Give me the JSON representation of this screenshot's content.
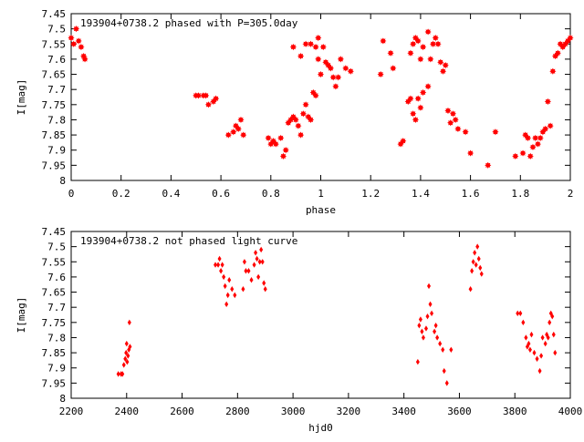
{
  "colors": {
    "points": "#ff0000",
    "axes": "#000000",
    "background": "#ffffff"
  },
  "chart_data": [
    {
      "type": "scatter",
      "title": "193904+0738.2 phased with P=305.0day",
      "xlabel": "phase",
      "ylabel": "I[mag]",
      "xlim": [
        0,
        2
      ],
      "ylim": [
        8,
        7.45
      ],
      "y_inverted": true,
      "grid": false,
      "marker": "filled-star",
      "xticks": [
        0,
        0.2,
        0.4,
        0.6,
        0.8,
        1,
        1.2,
        1.4,
        1.6,
        1.8,
        2
      ],
      "xtick_labels": [
        "0",
        "0.2",
        "0.4",
        "0.6",
        "0.8",
        "1",
        "1.2",
        "1.4",
        "1.6",
        "1.8",
        "2"
      ],
      "yticks": [
        7.45,
        7.5,
        7.55,
        7.6,
        7.65,
        7.7,
        7.75,
        7.8,
        7.85,
        7.9,
        7.95,
        8
      ],
      "ytick_labels": [
        "7.45",
        "7.5",
        "7.55",
        "7.6",
        "7.65",
        "7.7",
        "7.75",
        "7.8",
        "7.85",
        "7.9",
        "7.95",
        "8"
      ],
      "points": [
        [
          0.0,
          7.53
        ],
        [
          0.01,
          7.55
        ],
        [
          0.02,
          7.5
        ],
        [
          0.03,
          7.54
        ],
        [
          0.04,
          7.56
        ],
        [
          0.05,
          7.59
        ],
        [
          0.055,
          7.6
        ],
        [
          0.5,
          7.72
        ],
        [
          0.51,
          7.72
        ],
        [
          0.53,
          7.72
        ],
        [
          0.54,
          7.72
        ],
        [
          0.55,
          7.75
        ],
        [
          0.57,
          7.74
        ],
        [
          0.58,
          7.73
        ],
        [
          0.63,
          7.85
        ],
        [
          0.65,
          7.84
        ],
        [
          0.66,
          7.82
        ],
        [
          0.67,
          7.83
        ],
        [
          0.68,
          7.8
        ],
        [
          0.69,
          7.85
        ],
        [
          0.79,
          7.86
        ],
        [
          0.8,
          7.88
        ],
        [
          0.81,
          7.87
        ],
        [
          0.82,
          7.88
        ],
        [
          0.84,
          7.86
        ],
        [
          0.85,
          7.92
        ],
        [
          0.86,
          7.9
        ],
        [
          0.87,
          7.81
        ],
        [
          0.88,
          7.8
        ],
        [
          0.89,
          7.79
        ],
        [
          0.9,
          7.8
        ],
        [
          0.91,
          7.82
        ],
        [
          0.92,
          7.85
        ],
        [
          0.93,
          7.78
        ],
        [
          0.94,
          7.75
        ],
        [
          0.95,
          7.79
        ],
        [
          0.96,
          7.8
        ],
        [
          0.97,
          7.71
        ],
        [
          0.98,
          7.72
        ],
        [
          0.99,
          7.6
        ],
        [
          1.0,
          7.65
        ],
        [
          0.89,
          7.56
        ],
        [
          0.92,
          7.59
        ],
        [
          0.94,
          7.55
        ],
        [
          0.96,
          7.55
        ],
        [
          0.98,
          7.56
        ],
        [
          0.99,
          7.53
        ],
        [
          1.01,
          7.56
        ],
        [
          1.02,
          7.61
        ],
        [
          1.03,
          7.62
        ],
        [
          1.04,
          7.63
        ],
        [
          1.05,
          7.66
        ],
        [
          1.06,
          7.69
        ],
        [
          1.07,
          7.66
        ],
        [
          1.08,
          7.6
        ],
        [
          1.1,
          7.63
        ],
        [
          1.12,
          7.64
        ],
        [
          1.24,
          7.65
        ],
        [
          1.25,
          7.54
        ],
        [
          1.28,
          7.58
        ],
        [
          1.29,
          7.63
        ],
        [
          1.32,
          7.88
        ],
        [
          1.33,
          7.87
        ],
        [
          1.35,
          7.74
        ],
        [
          1.36,
          7.73
        ],
        [
          1.37,
          7.78
        ],
        [
          1.38,
          7.8
        ],
        [
          1.39,
          7.73
        ],
        [
          1.4,
          7.76
        ],
        [
          1.41,
          7.71
        ],
        [
          1.43,
          7.69
        ],
        [
          1.36,
          7.58
        ],
        [
          1.37,
          7.55
        ],
        [
          1.38,
          7.53
        ],
        [
          1.39,
          7.54
        ],
        [
          1.4,
          7.6
        ],
        [
          1.41,
          7.56
        ],
        [
          1.43,
          7.51
        ],
        [
          1.44,
          7.6
        ],
        [
          1.45,
          7.55
        ],
        [
          1.46,
          7.53
        ],
        [
          1.47,
          7.55
        ],
        [
          1.48,
          7.61
        ],
        [
          1.49,
          7.64
        ],
        [
          1.5,
          7.62
        ],
        [
          1.51,
          7.77
        ],
        [
          1.52,
          7.81
        ],
        [
          1.53,
          7.78
        ],
        [
          1.54,
          7.8
        ],
        [
          1.55,
          7.83
        ],
        [
          1.58,
          7.84
        ],
        [
          1.6,
          7.91
        ],
        [
          1.67,
          7.95
        ],
        [
          1.7,
          7.84
        ],
        [
          1.78,
          7.92
        ],
        [
          1.81,
          7.91
        ],
        [
          1.82,
          7.85
        ],
        [
          1.83,
          7.86
        ],
        [
          1.84,
          7.92
        ],
        [
          1.85,
          7.89
        ],
        [
          1.86,
          7.86
        ],
        [
          1.87,
          7.88
        ],
        [
          1.88,
          7.86
        ],
        [
          1.89,
          7.84
        ],
        [
          1.9,
          7.83
        ],
        [
          1.91,
          7.74
        ],
        [
          1.92,
          7.82
        ],
        [
          1.93,
          7.64
        ],
        [
          1.94,
          7.59
        ],
        [
          1.95,
          7.58
        ],
        [
          1.96,
          7.55
        ],
        [
          1.97,
          7.56
        ],
        [
          1.98,
          7.55
        ],
        [
          1.99,
          7.54
        ],
        [
          2.0,
          7.53
        ]
      ]
    },
    {
      "type": "scatter",
      "title": "193904+0738.2 not phased light curve",
      "xlabel": "hjd0",
      "ylabel": "I[mag]",
      "xlim": [
        2200,
        4000
      ],
      "ylim": [
        8,
        7.45
      ],
      "y_inverted": true,
      "grid": false,
      "marker": "diamond",
      "xticks": [
        2200,
        2400,
        2600,
        2800,
        3000,
        3200,
        3400,
        3600,
        3800,
        4000
      ],
      "xtick_labels": [
        "2200",
        "2400",
        "2600",
        "2800",
        "3000",
        "3200",
        "3400",
        "3600",
        "3800",
        "4000"
      ],
      "yticks": [
        7.45,
        7.5,
        7.55,
        7.6,
        7.65,
        7.7,
        7.75,
        7.8,
        7.85,
        7.9,
        7.95,
        8
      ],
      "ytick_labels": [
        "7.45",
        "7.5",
        "7.55",
        "7.6",
        "7.65",
        "7.7",
        "7.75",
        "7.8",
        "7.85",
        "7.9",
        "7.95",
        "8"
      ],
      "points": [
        [
          2370,
          7.92
        ],
        [
          2380,
          7.92
        ],
        [
          2385,
          7.92
        ],
        [
          2390,
          7.89
        ],
        [
          2395,
          7.87
        ],
        [
          2398,
          7.85
        ],
        [
          2400,
          7.82
        ],
        [
          2402,
          7.88
        ],
        [
          2405,
          7.86
        ],
        [
          2408,
          7.84
        ],
        [
          2410,
          7.75
        ],
        [
          2412,
          7.83
        ],
        [
          2720,
          7.56
        ],
        [
          2730,
          7.56
        ],
        [
          2735,
          7.54
        ],
        [
          2740,
          7.58
        ],
        [
          2745,
          7.56
        ],
        [
          2750,
          7.6
        ],
        [
          2755,
          7.63
        ],
        [
          2760,
          7.69
        ],
        [
          2765,
          7.66
        ],
        [
          2770,
          7.61
        ],
        [
          2780,
          7.64
        ],
        [
          2790,
          7.66
        ],
        [
          2820,
          7.64
        ],
        [
          2825,
          7.55
        ],
        [
          2830,
          7.58
        ],
        [
          2840,
          7.58
        ],
        [
          2850,
          7.61
        ],
        [
          2860,
          7.56
        ],
        [
          2865,
          7.52
        ],
        [
          2870,
          7.54
        ],
        [
          2875,
          7.6
        ],
        [
          2880,
          7.55
        ],
        [
          2885,
          7.51
        ],
        [
          2890,
          7.55
        ],
        [
          2895,
          7.62
        ],
        [
          2900,
          7.64
        ],
        [
          3450,
          7.88
        ],
        [
          3455,
          7.76
        ],
        [
          3460,
          7.74
        ],
        [
          3465,
          7.78
        ],
        [
          3470,
          7.8
        ],
        [
          3480,
          7.77
        ],
        [
          3485,
          7.73
        ],
        [
          3490,
          7.63
        ],
        [
          3495,
          7.69
        ],
        [
          3500,
          7.72
        ],
        [
          3510,
          7.78
        ],
        [
          3515,
          7.76
        ],
        [
          3520,
          7.8
        ],
        [
          3530,
          7.82
        ],
        [
          3540,
          7.84
        ],
        [
          3545,
          7.91
        ],
        [
          3555,
          7.95
        ],
        [
          3570,
          7.84
        ],
        [
          3640,
          7.64
        ],
        [
          3645,
          7.58
        ],
        [
          3650,
          7.55
        ],
        [
          3655,
          7.52
        ],
        [
          3660,
          7.56
        ],
        [
          3665,
          7.5
        ],
        [
          3670,
          7.54
        ],
        [
          3675,
          7.57
        ],
        [
          3680,
          7.59
        ],
        [
          3810,
          7.72
        ],
        [
          3820,
          7.72
        ],
        [
          3830,
          7.75
        ],
        [
          3840,
          7.8
        ],
        [
          3845,
          7.83
        ],
        [
          3850,
          7.82
        ],
        [
          3855,
          7.84
        ],
        [
          3860,
          7.79
        ],
        [
          3870,
          7.85
        ],
        [
          3880,
          7.87
        ],
        [
          3890,
          7.91
        ],
        [
          3895,
          7.86
        ],
        [
          3900,
          7.8
        ],
        [
          3910,
          7.82
        ],
        [
          3915,
          7.79
        ],
        [
          3920,
          7.8
        ],
        [
          3925,
          7.75
        ],
        [
          3930,
          7.72
        ],
        [
          3935,
          7.73
        ],
        [
          3940,
          7.79
        ],
        [
          3945,
          7.85
        ]
      ]
    }
  ]
}
